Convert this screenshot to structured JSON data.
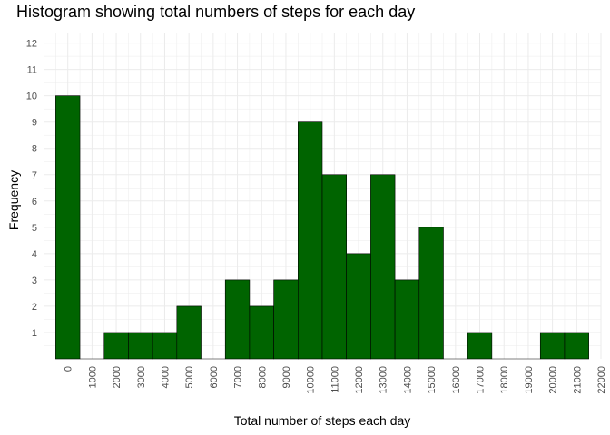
{
  "chart_data": {
    "type": "bar",
    "title": "Histogram showing total numbers of steps for each day",
    "xlabel": "Total number of steps each day",
    "ylabel": "Frequency",
    "bin_width": 1000,
    "bin_lefts": [
      0,
      1000,
      2000,
      3000,
      4000,
      5000,
      6000,
      7000,
      8000,
      9000,
      10000,
      11000,
      12000,
      13000,
      14000,
      15000,
      16000,
      17000,
      18000,
      19000,
      20000,
      21000
    ],
    "values": [
      10,
      0,
      1,
      1,
      1,
      2,
      0,
      3,
      2,
      3,
      9,
      7,
      4,
      7,
      3,
      5,
      0,
      1,
      0,
      0,
      1,
      1
    ],
    "x_ticks": [
      0,
      1000,
      2000,
      3000,
      4000,
      5000,
      6000,
      7000,
      8000,
      9000,
      10000,
      11000,
      12000,
      13000,
      14000,
      15000,
      16000,
      17000,
      18000,
      19000,
      20000,
      21000,
      22000
    ],
    "y_ticks": [
      1,
      2,
      3,
      4,
      5,
      6,
      7,
      8,
      9,
      10,
      11,
      12
    ],
    "xlim": [
      -1000,
      22000
    ],
    "ylim": [
      0,
      12.4
    ],
    "grid": true,
    "bar_color": "#006400",
    "bar_edge_color": "#000000",
    "grid_color": "#ebebeb"
  }
}
